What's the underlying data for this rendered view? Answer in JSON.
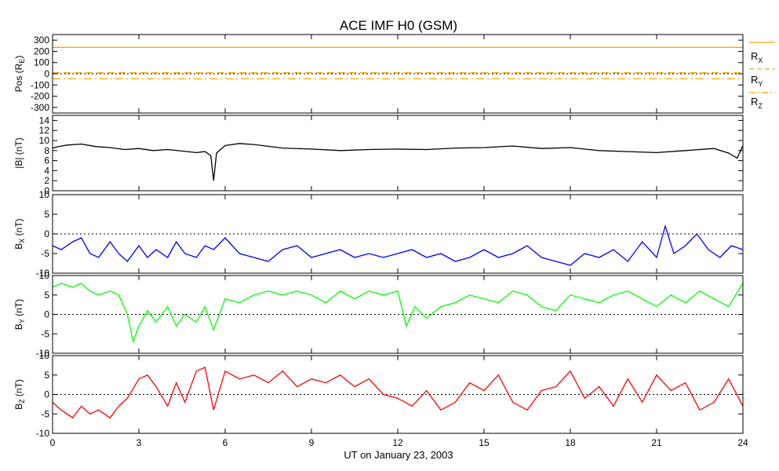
{
  "title": "ACE IMF H0 (GSM)",
  "xlabel": "UT on January 23, 2003",
  "x_ticks": [
    "0",
    "3",
    "6",
    "9",
    "12",
    "15",
    "18",
    "21",
    "24"
  ],
  "x_range": [
    0,
    24
  ],
  "chart_data": [
    {
      "type": "line",
      "ylabel": "Pos (R",
      "ylabel_sub": "E",
      "ylabel_end": ")",
      "ylim": [
        -350,
        350
      ],
      "y_ticks": [
        300,
        200,
        100,
        0,
        -100,
        -200,
        -300
      ],
      "series": [
        {
          "name": "R",
          "sub": "X",
          "color": "#ffa500",
          "style": "solid",
          "x": [
            0,
            24
          ],
          "y": [
            236,
            236
          ]
        },
        {
          "name": "R",
          "sub": "Y",
          "color": "#ffa500",
          "style": "dashed",
          "x": [
            0,
            24
          ],
          "y": [
            9,
            9
          ]
        },
        {
          "name": "R",
          "sub": "Z",
          "color": "#ffa500",
          "style": "dashdot",
          "x": [
            0,
            24
          ],
          "y": [
            -45,
            -45
          ]
        }
      ]
    },
    {
      "type": "line",
      "ylabel": "|B| (nT)",
      "ylim": [
        0,
        15
      ],
      "y_ticks": [
        14,
        12,
        10,
        8,
        6,
        4,
        2,
        0
      ],
      "series": [
        {
          "color": "#000000",
          "x": [
            0,
            0.2,
            0.5,
            1,
            1.5,
            2,
            2.5,
            3,
            3.5,
            4,
            4.5,
            5,
            5.3,
            5.5,
            5.6,
            5.7,
            6,
            6.5,
            7,
            8,
            9,
            10,
            11,
            12,
            13,
            14,
            15,
            16,
            17,
            18,
            19,
            20,
            21,
            22,
            23,
            23.5,
            23.8,
            24
          ],
          "y": [
            8.5,
            8.8,
            9.1,
            9.3,
            8.8,
            8.6,
            8.2,
            8.4,
            8.0,
            8.2,
            7.9,
            7.6,
            7.8,
            7.0,
            2.0,
            7.5,
            9.0,
            9.4,
            9.2,
            8.5,
            8.3,
            8.0,
            8.2,
            8.3,
            8.2,
            8.5,
            8.6,
            8.9,
            8.4,
            8.6,
            8.0,
            7.8,
            7.6,
            8.0,
            8.4,
            7.5,
            6.5,
            9.0
          ]
        }
      ]
    },
    {
      "type": "line",
      "ylabel": "B",
      "ylabel_sub": "X",
      "ylabel_end": " (nT)",
      "ylim": [
        -10,
        10
      ],
      "y_ticks": [
        10,
        5,
        0,
        -5,
        -10
      ],
      "series": [
        {
          "color": "#0000ff",
          "x": [
            0,
            0.3,
            0.7,
            1,
            1.3,
            1.6,
            2,
            2.3,
            2.6,
            3,
            3.3,
            3.6,
            4,
            4.3,
            4.6,
            5,
            5.3,
            5.6,
            6,
            6.5,
            7,
            7.5,
            8,
            8.5,
            9,
            9.5,
            10,
            10.5,
            11,
            11.5,
            12,
            12.5,
            13,
            13.5,
            14,
            14.5,
            15,
            15.5,
            16,
            16.5,
            17,
            17.5,
            18,
            18.5,
            19,
            19.5,
            20,
            20.5,
            21,
            21.3,
            21.6,
            22,
            22.4,
            22.8,
            23.2,
            23.6,
            24
          ],
          "y": [
            -3,
            -4,
            -2,
            -1,
            -5,
            -6,
            -2,
            -5,
            -7,
            -3,
            -6,
            -4,
            -6,
            -2,
            -5,
            -6,
            -3,
            -4,
            -1,
            -5,
            -6,
            -7,
            -4,
            -3,
            -6,
            -5,
            -4,
            -6,
            -5,
            -6,
            -5,
            -4,
            -6,
            -5,
            -7,
            -6,
            -4,
            -6,
            -5,
            -3,
            -6,
            -7,
            -8,
            -5,
            -6,
            -4,
            -7,
            -2,
            -6,
            2,
            -5,
            -3,
            0,
            -4,
            -6,
            -3,
            -4
          ]
        }
      ]
    },
    {
      "type": "line",
      "ylabel": "B",
      "ylabel_sub": "Y",
      "ylabel_end": " (nT)",
      "ylim": [
        -10,
        10
      ],
      "y_ticks": [
        10,
        5,
        0,
        -5,
        -10
      ],
      "series": [
        {
          "color": "#00ff00",
          "x": [
            0,
            0.3,
            0.7,
            1,
            1.3,
            1.6,
            2,
            2.3,
            2.6,
            2.8,
            3,
            3.3,
            3.6,
            4,
            4.3,
            4.6,
            5,
            5.3,
            5.6,
            6,
            6.5,
            7,
            7.5,
            8,
            8.5,
            9,
            9.5,
            10,
            10.5,
            11,
            11.5,
            12,
            12.3,
            12.6,
            13,
            13.5,
            14,
            14.5,
            15,
            15.5,
            16,
            16.5,
            17,
            17.5,
            18,
            18.5,
            19,
            19.5,
            20,
            20.5,
            21,
            21.5,
            22,
            22.5,
            23,
            23.5,
            24
          ],
          "y": [
            7,
            8,
            7,
            8,
            6,
            5,
            6,
            5,
            0,
            -7,
            -3,
            1,
            -2,
            2,
            -3,
            0,
            -2,
            2,
            -4,
            4,
            3,
            5,
            6,
            5,
            6,
            5,
            3,
            6,
            4,
            6,
            5,
            6,
            -3,
            2,
            -1,
            2,
            3,
            5,
            4,
            3,
            6,
            5,
            2,
            1,
            5,
            4,
            3,
            5,
            6,
            4,
            2,
            5,
            3,
            6,
            4,
            2,
            8
          ]
        }
      ]
    },
    {
      "type": "line",
      "ylabel": "B",
      "ylabel_sub": "Z",
      "ylabel_end": " (nT)",
      "ylim": [
        -10,
        10
      ],
      "y_ticks": [
        10,
        5,
        0,
        -5,
        -10
      ],
      "series": [
        {
          "color": "#ff0000",
          "x": [
            0,
            0.3,
            0.7,
            1,
            1.3,
            1.6,
            2,
            2.3,
            2.6,
            3,
            3.3,
            3.6,
            4,
            4.3,
            4.6,
            5,
            5.3,
            5.6,
            6,
            6.5,
            7,
            7.5,
            8,
            8.5,
            9,
            9.5,
            10,
            10.5,
            11,
            11.5,
            12,
            12.5,
            13,
            13.5,
            14,
            14.5,
            15,
            15.5,
            16,
            16.5,
            17,
            17.5,
            18,
            18.5,
            19,
            19.5,
            20,
            20.5,
            21,
            21.5,
            22,
            22.5,
            23,
            23.5,
            24
          ],
          "y": [
            -2,
            -4,
            -6,
            -3,
            -5,
            -4,
            -6,
            -3,
            -1,
            4,
            5,
            2,
            -3,
            3,
            -2,
            6,
            7,
            -4,
            6,
            4,
            5,
            3,
            6,
            2,
            4,
            3,
            5,
            2,
            4,
            0,
            -1,
            -3,
            1,
            -4,
            -2,
            3,
            1,
            5,
            -2,
            -4,
            1,
            2,
            6,
            -1,
            2,
            -3,
            4,
            -2,
            5,
            1,
            3,
            -4,
            -2,
            4,
            -3
          ]
        }
      ]
    }
  ],
  "legend": {
    "rx": {
      "main": "R",
      "sub": "X"
    },
    "ry": {
      "main": "R",
      "sub": "Y"
    },
    "rz": {
      "main": "R",
      "sub": "Z"
    }
  }
}
